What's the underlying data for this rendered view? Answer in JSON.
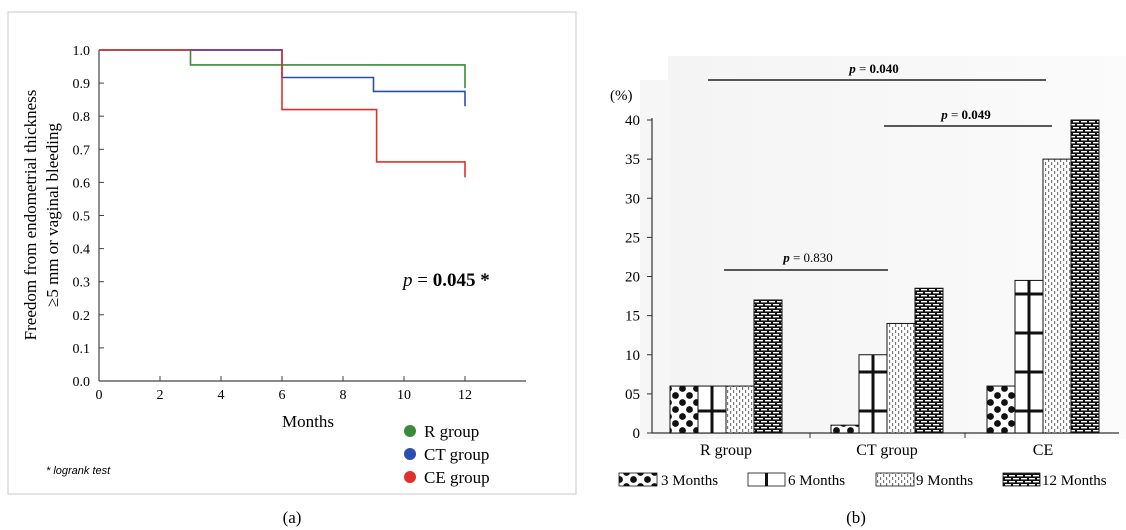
{
  "chart_data": [
    {
      "type": "line",
      "panel_label": "(a)",
      "title": "",
      "xlabel": "Months",
      "ylabel_line1": "Freedom from endometrial thickness",
      "ylabel_line2": "≥5 mm or vaginal bleeding",
      "xlim": [
        0,
        14
      ],
      "ylim": [
        0.0,
        1.0
      ],
      "x_ticks": [
        0,
        2,
        4,
        6,
        8,
        10,
        12
      ],
      "x_tick_labels": [
        "0",
        "2",
        "4",
        "6",
        "8",
        "10",
        "12"
      ],
      "y_ticks": [
        0.0,
        0.1,
        0.2,
        0.3,
        0.4,
        0.5,
        0.6,
        0.7,
        0.8,
        0.9,
        1.0
      ],
      "y_tick_labels": [
        "0.0",
        "0.1",
        "0.2",
        "0.3",
        "0.4",
        "0.5",
        "0.6",
        "0.7",
        "0.8",
        "0.9",
        "1.0"
      ],
      "step": true,
      "series": [
        {
          "name": "R group",
          "color": "#3a8a3a",
          "x": [
            0,
            3,
            3,
            12,
            12
          ],
          "y": [
            1.0,
            1.0,
            0.955,
            0.955,
            0.885
          ]
        },
        {
          "name": "CT group",
          "color": "#2a4fb0",
          "x": [
            0,
            6,
            6,
            9,
            9,
            12,
            12
          ],
          "y": [
            1.0,
            1.0,
            0.917,
            0.917,
            0.875,
            0.875,
            0.83
          ]
        },
        {
          "name": "CE group",
          "color": "#e0302c",
          "x": [
            0,
            6,
            6,
            9.1,
            9.1,
            12,
            12
          ],
          "y": [
            1.0,
            1.0,
            0.82,
            0.82,
            0.662,
            0.662,
            0.615
          ]
        },
        {
          "name": "",
          "color": "#6a3a9a",
          "x": [
            3,
            6
          ],
          "y": [
            1.0,
            1.0
          ]
        }
      ],
      "annotation": {
        "prefix": "p",
        "eq": " = ",
        "value": "0.045",
        "star": " *"
      },
      "footnote": "* logrank test",
      "legend_position": "bottom-right"
    },
    {
      "type": "bar",
      "panel_label": "(b)",
      "title": "",
      "ylabel": "(%)",
      "ylim": [
        0,
        40
      ],
      "y_ticks": [
        0,
        5,
        10,
        15,
        20,
        25,
        30,
        35,
        40
      ],
      "y_tick_labels": [
        "0",
        "05",
        "10",
        "15",
        "20",
        "25",
        "30",
        "35",
        "40"
      ],
      "categories": [
        "R group",
        "CT group",
        "CE"
      ],
      "series": [
        {
          "name": "3 Months",
          "pattern": "dots",
          "values": [
            6,
            1,
            6
          ]
        },
        {
          "name": "6 Months",
          "pattern": "cross",
          "values": [
            6,
            10,
            19.5
          ]
        },
        {
          "name": "9 Months",
          "pattern": "dashes",
          "values": [
            6,
            14,
            35
          ]
        },
        {
          "name": "12 Months",
          "pattern": "bricks",
          "values": [
            17,
            18.5,
            40
          ]
        }
      ],
      "annotations": [
        {
          "prefix": "p",
          "eq": " = ",
          "value": "0.040",
          "bold": true
        },
        {
          "prefix": "p",
          "eq": " = ",
          "value": "0.049",
          "bold": true
        },
        {
          "prefix": "p",
          "eq": " = ",
          "value": "0.830",
          "bold": false
        }
      ],
      "legend_position": "bottom"
    }
  ]
}
